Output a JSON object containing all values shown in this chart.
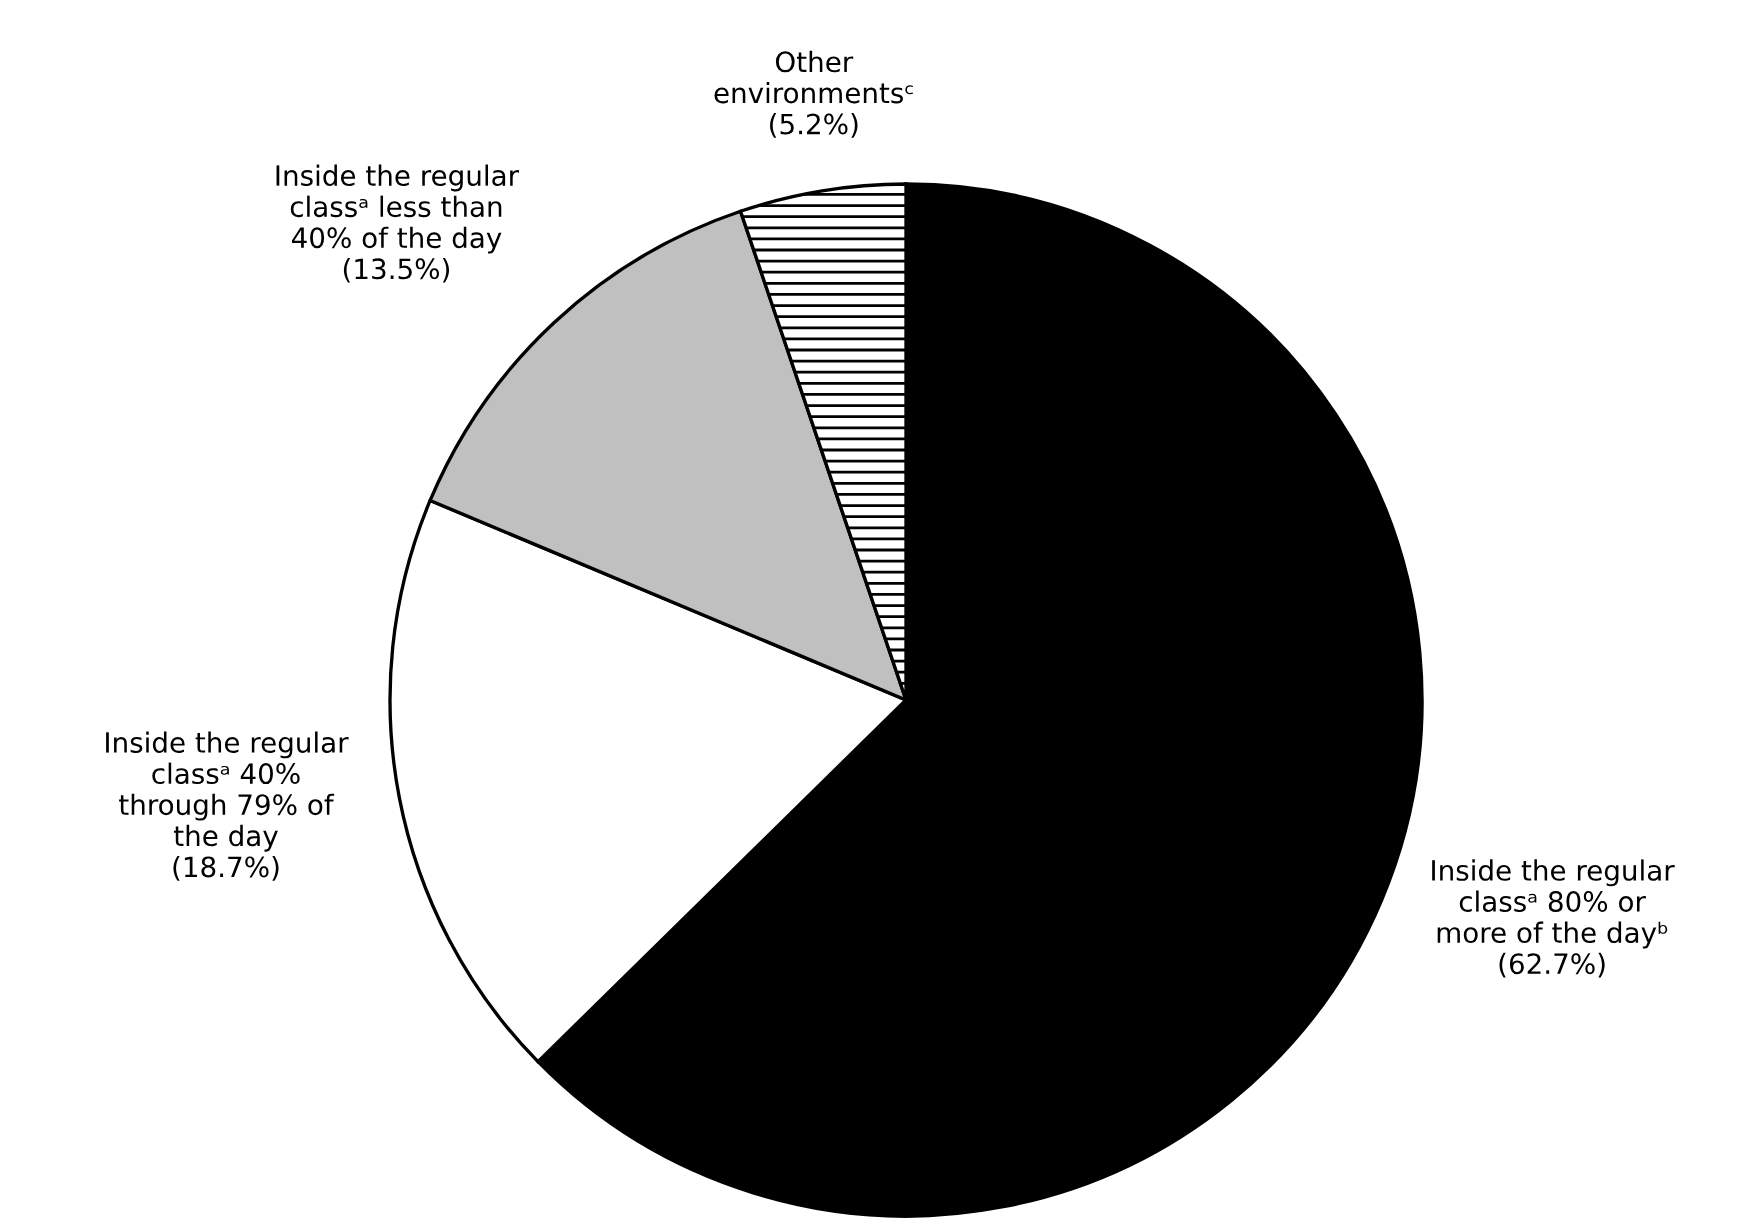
{
  "chart_data": {
    "type": "pie",
    "categories": [
      "Inside the regular\nclassᵃ 80% or\nmore of the dayᵇ",
      "Inside the regular\nclassᵃ 40%\nthrough 79% of\nthe day",
      "Inside the regular\nclassᵃ less than\n40% of the day",
      "Other\nenvironmentsᶜ"
    ],
    "values": [
      62.7,
      18.7,
      13.5,
      5.2
    ],
    "value_labels": [
      "(62.7%)",
      "(18.7%)",
      "(13.5%)",
      "(5.2%)"
    ],
    "colors": [
      "#000000",
      "#ffffff",
      "#c0c0c0",
      "#ffffff"
    ]
  }
}
